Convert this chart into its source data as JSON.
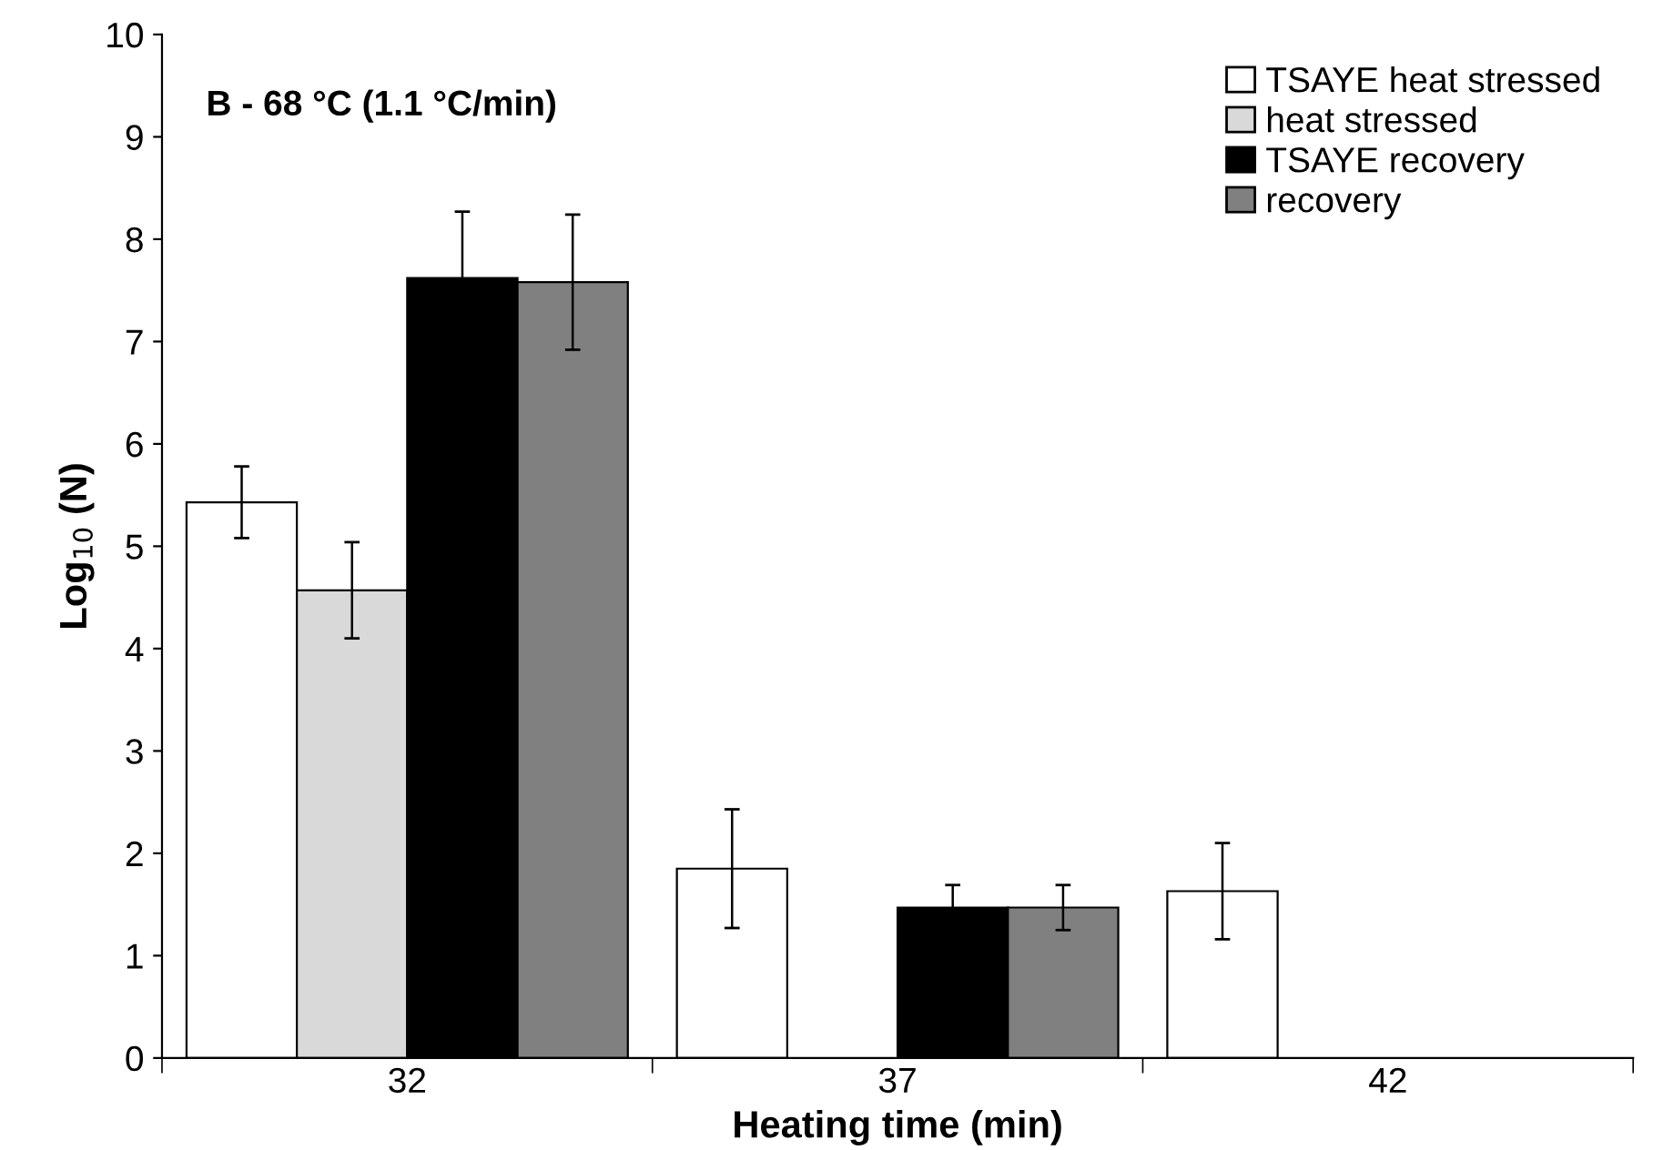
{
  "chart_data": {
    "type": "bar",
    "xlabel": "Heating time (min)",
    "ylabel": "Log$_{10}$ (N)",
    "categories": [
      "32",
      "37",
      "42"
    ],
    "series": [
      {
        "name": "TSAYE heat stressed",
        "color": "#ffffff",
        "values": [
          5.43,
          1.85,
          1.63
        ],
        "errors": [
          0.35,
          0.58,
          0.47
        ]
      },
      {
        "name": "heat stressed",
        "color": "#d9d9d9",
        "values": [
          4.57,
          null,
          null
        ],
        "errors": [
          0.47,
          null,
          null
        ]
      },
      {
        "name": "TSAYE recovery",
        "color": "#000000",
        "values": [
          7.62,
          1.47,
          null
        ],
        "errors": [
          0.65,
          0.22,
          null
        ]
      },
      {
        "name": "recovery",
        "color": "#808080",
        "values": [
          7.58,
          1.47,
          null
        ],
        "errors": [
          0.66,
          0.22,
          null
        ]
      }
    ],
    "ylim": [
      0,
      10
    ],
    "yticks": [
      0,
      1,
      2,
      3,
      4,
      5,
      6,
      7,
      8,
      9,
      10
    ],
    "annotations": [
      "B - 68 °C (1.1 °C/min)"
    ],
    "legend": "top right",
    "grid": false
  }
}
